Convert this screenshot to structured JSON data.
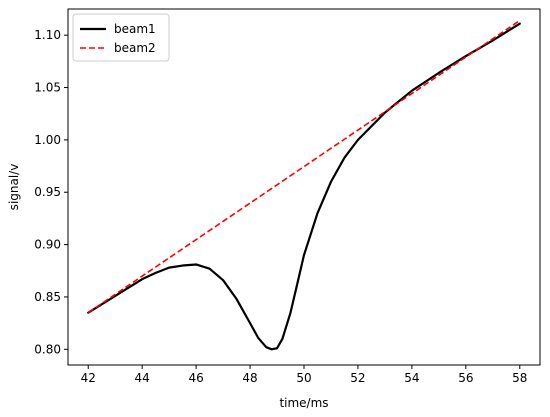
{
  "chart_data": {
    "type": "line",
    "title": "",
    "xlabel": "time/ms",
    "ylabel": "signal/v",
    "xlim": [
      41.25,
      58.75
    ],
    "ylim": [
      0.785,
      1.125
    ],
    "xticks": [
      42,
      44,
      46,
      48,
      50,
      52,
      54,
      56,
      58
    ],
    "xtick_labels": [
      "42",
      "44",
      "46",
      "48",
      "50",
      "52",
      "54",
      "56",
      "58"
    ],
    "yticks": [
      0.8,
      0.85,
      0.9,
      0.95,
      1.0,
      1.05,
      1.1
    ],
    "ytick_labels": [
      "0.80",
      "0.85",
      "0.90",
      "0.95",
      "1.00",
      "1.05",
      "1.10"
    ],
    "grid": false,
    "legend_position": "top-left",
    "series": [
      {
        "name": "beam1",
        "color": "#000000",
        "style": "solid",
        "x": [
          42,
          42.5,
          43,
          43.5,
          44,
          44.5,
          45,
          45.5,
          46,
          46.5,
          47,
          47.5,
          48,
          48.3,
          48.6,
          48.8,
          49,
          49.2,
          49.5,
          49.8,
          50,
          50.5,
          51,
          51.5,
          52,
          53,
          54,
          55,
          56,
          57,
          58
        ],
        "y": [
          0.835,
          0.843,
          0.851,
          0.859,
          0.867,
          0.873,
          0.878,
          0.88,
          0.881,
          0.877,
          0.866,
          0.848,
          0.825,
          0.811,
          0.802,
          0.8,
          0.801,
          0.81,
          0.835,
          0.868,
          0.89,
          0.93,
          0.96,
          0.983,
          1.0,
          1.026,
          1.047,
          1.064,
          1.08,
          1.095,
          1.111
        ]
      },
      {
        "name": "beam2",
        "color": "#ff0000",
        "style": "dashed",
        "x": [
          42,
          58
        ],
        "y": [
          0.835,
          1.114
        ]
      }
    ]
  }
}
